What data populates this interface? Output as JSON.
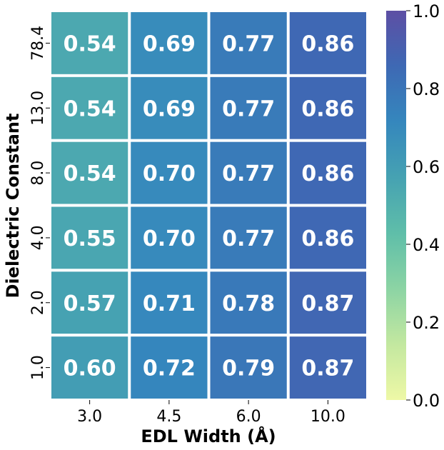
{
  "chart_data": {
    "type": "heatmap",
    "xlabel": "EDL Width (Å)",
    "ylabel": "Dielectric Constant",
    "x_categories": [
      "3.0",
      "4.5",
      "6.0",
      "10.0"
    ],
    "y_categories": [
      "78.4",
      "13.0",
      "8.0",
      "4.0",
      "2.0",
      "1.0"
    ],
    "values": [
      [
        0.54,
        0.69,
        0.77,
        0.86
      ],
      [
        0.54,
        0.69,
        0.77,
        0.86
      ],
      [
        0.54,
        0.7,
        0.77,
        0.86
      ],
      [
        0.55,
        0.7,
        0.77,
        0.86
      ],
      [
        0.57,
        0.71,
        0.78,
        0.87
      ],
      [
        0.6,
        0.72,
        0.79,
        0.87
      ]
    ],
    "value_labels": [
      [
        "0.54",
        "0.69",
        "0.77",
        "0.86"
      ],
      [
        "0.54",
        "0.69",
        "0.77",
        "0.86"
      ],
      [
        "0.54",
        "0.70",
        "0.77",
        "0.86"
      ],
      [
        "0.55",
        "0.70",
        "0.77",
        "0.86"
      ],
      [
        "0.57",
        "0.71",
        "0.78",
        "0.87"
      ],
      [
        "0.60",
        "0.72",
        "0.79",
        "0.87"
      ]
    ],
    "colorbar": {
      "range": [
        0.0,
        1.0
      ],
      "ticks": [
        "0.0",
        "0.2",
        "0.4",
        "0.6",
        "0.8",
        "1.0"
      ],
      "colormap": [
        "#eef8a6",
        "#c3e8a0",
        "#8cd4a4",
        "#5fbea9",
        "#46a2b2",
        "#3587bd",
        "#3e69b4",
        "#5d4fa4"
      ]
    }
  }
}
